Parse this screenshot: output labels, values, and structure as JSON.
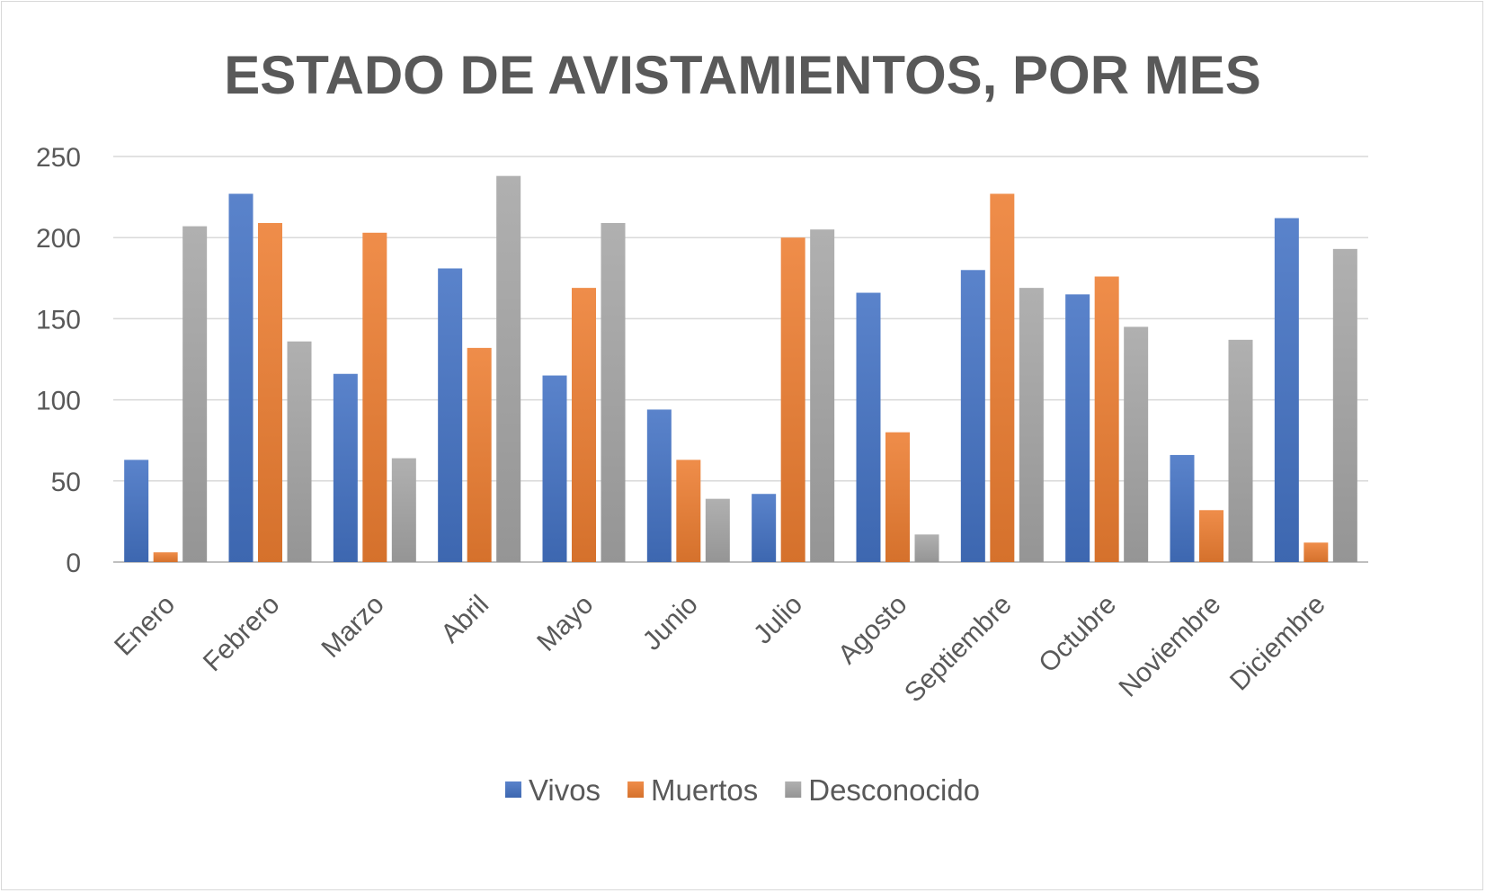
{
  "chart_data": {
    "type": "bar",
    "title": "ESTADO DE AVISTAMIENTOS, POR MES",
    "xlabel": "",
    "ylabel": "",
    "categories": [
      "Enero",
      "Febrero",
      "Marzo",
      "Abril",
      "Mayo",
      "Junio",
      "Julio",
      "Agosto",
      "Septiembre",
      "Octubre",
      "Noviembre",
      "Diciembre"
    ],
    "series": [
      {
        "name": "Vivos",
        "color": "#4472c4",
        "values": [
          63,
          227,
          116,
          181,
          115,
          94,
          42,
          166,
          180,
          165,
          66,
          212
        ]
      },
      {
        "name": "Muertos",
        "color": "#ed7d31",
        "values": [
          6,
          209,
          203,
          132,
          169,
          63,
          200,
          80,
          227,
          176,
          32,
          12
        ]
      },
      {
        "name": "Desconocido",
        "color": "#a5a5a5",
        "values": [
          207,
          136,
          64,
          238,
          209,
          39,
          205,
          17,
          169,
          145,
          137,
          193
        ]
      }
    ],
    "ylim": [
      0,
      250
    ],
    "yticks": [
      0,
      50,
      100,
      150,
      200,
      250
    ],
    "grid": true,
    "legend_position": "bottom"
  }
}
